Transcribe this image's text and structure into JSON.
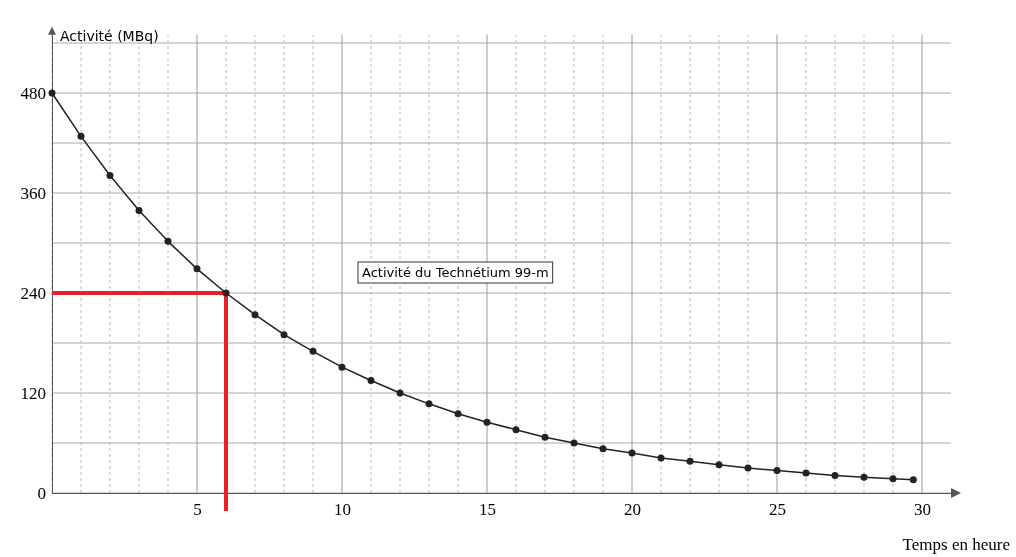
{
  "chart_data": {
    "type": "line",
    "xlabel": "Temps en heure",
    "ylabel": "Activité (MBq)",
    "x": [
      0,
      1,
      2,
      3,
      4,
      5,
      6,
      7,
      8,
      9,
      10,
      11,
      12,
      13,
      14,
      15,
      16,
      17,
      18,
      19,
      20,
      21,
      22,
      23,
      24,
      25,
      26,
      27,
      28,
      29,
      29.7
    ],
    "series": [
      {
        "color": "#222222",
        "values": [
          480,
          428,
          381,
          339,
          302,
          269,
          240,
          214,
          190,
          170,
          151,
          135,
          120,
          107,
          95,
          85,
          76,
          67,
          60,
          53,
          48,
          42,
          38,
          34,
          30,
          27,
          24,
          21,
          19,
          17,
          16
        ]
      }
    ],
    "xlim": [
      0,
      31
    ],
    "ylim": [
      0,
      550
    ],
    "xticks": [
      {
        "value": 0,
        "label": null
      },
      {
        "value": 1,
        "label": null
      },
      {
        "value": 2,
        "label": null
      },
      {
        "value": 3,
        "label": null
      },
      {
        "value": 4,
        "label": null
      },
      5,
      {
        "value": 6,
        "label": null
      },
      {
        "value": 7,
        "label": null
      },
      {
        "value": 8,
        "label": null
      },
      {
        "value": 9,
        "label": null
      },
      10,
      {
        "value": 11,
        "label": null
      },
      {
        "value": 12,
        "label": null
      },
      {
        "value": 13,
        "label": null
      },
      {
        "value": 14,
        "label": null
      },
      15,
      {
        "value": 16,
        "label": null
      },
      {
        "value": 17,
        "label": null
      },
      {
        "value": 18,
        "label": null
      },
      {
        "value": 19,
        "label": null
      },
      20,
      {
        "value": 21,
        "label": null
      },
      {
        "value": 22,
        "label": null
      },
      {
        "value": 23,
        "label": null
      },
      {
        "value": 24,
        "label": null
      },
      25,
      {
        "value": 26,
        "label": null
      },
      {
        "value": 27,
        "label": null
      },
      {
        "value": 28,
        "label": null
      },
      {
        "value": 29,
        "label": null
      },
      30
    ],
    "yticks": [
      0,
      {
        "value": 60,
        "label": null
      },
      120,
      {
        "value": 180,
        "label": null
      },
      240,
      {
        "value": 300,
        "label": null
      },
      360,
      {
        "value": 420,
        "label": null
      },
      480,
      {
        "value": 540,
        "label": null
      }
    ],
    "grid": true,
    "marker": "circle",
    "line_style": "solid",
    "annotations": [
      "Activité du Technétium 99-m"
    ],
    "ref_lines": [
      {
        "axis": "y",
        "value": 240,
        "color": "#e8202a"
      },
      {
        "axis": "x",
        "value": 6,
        "color": "#e8202a"
      }
    ]
  }
}
